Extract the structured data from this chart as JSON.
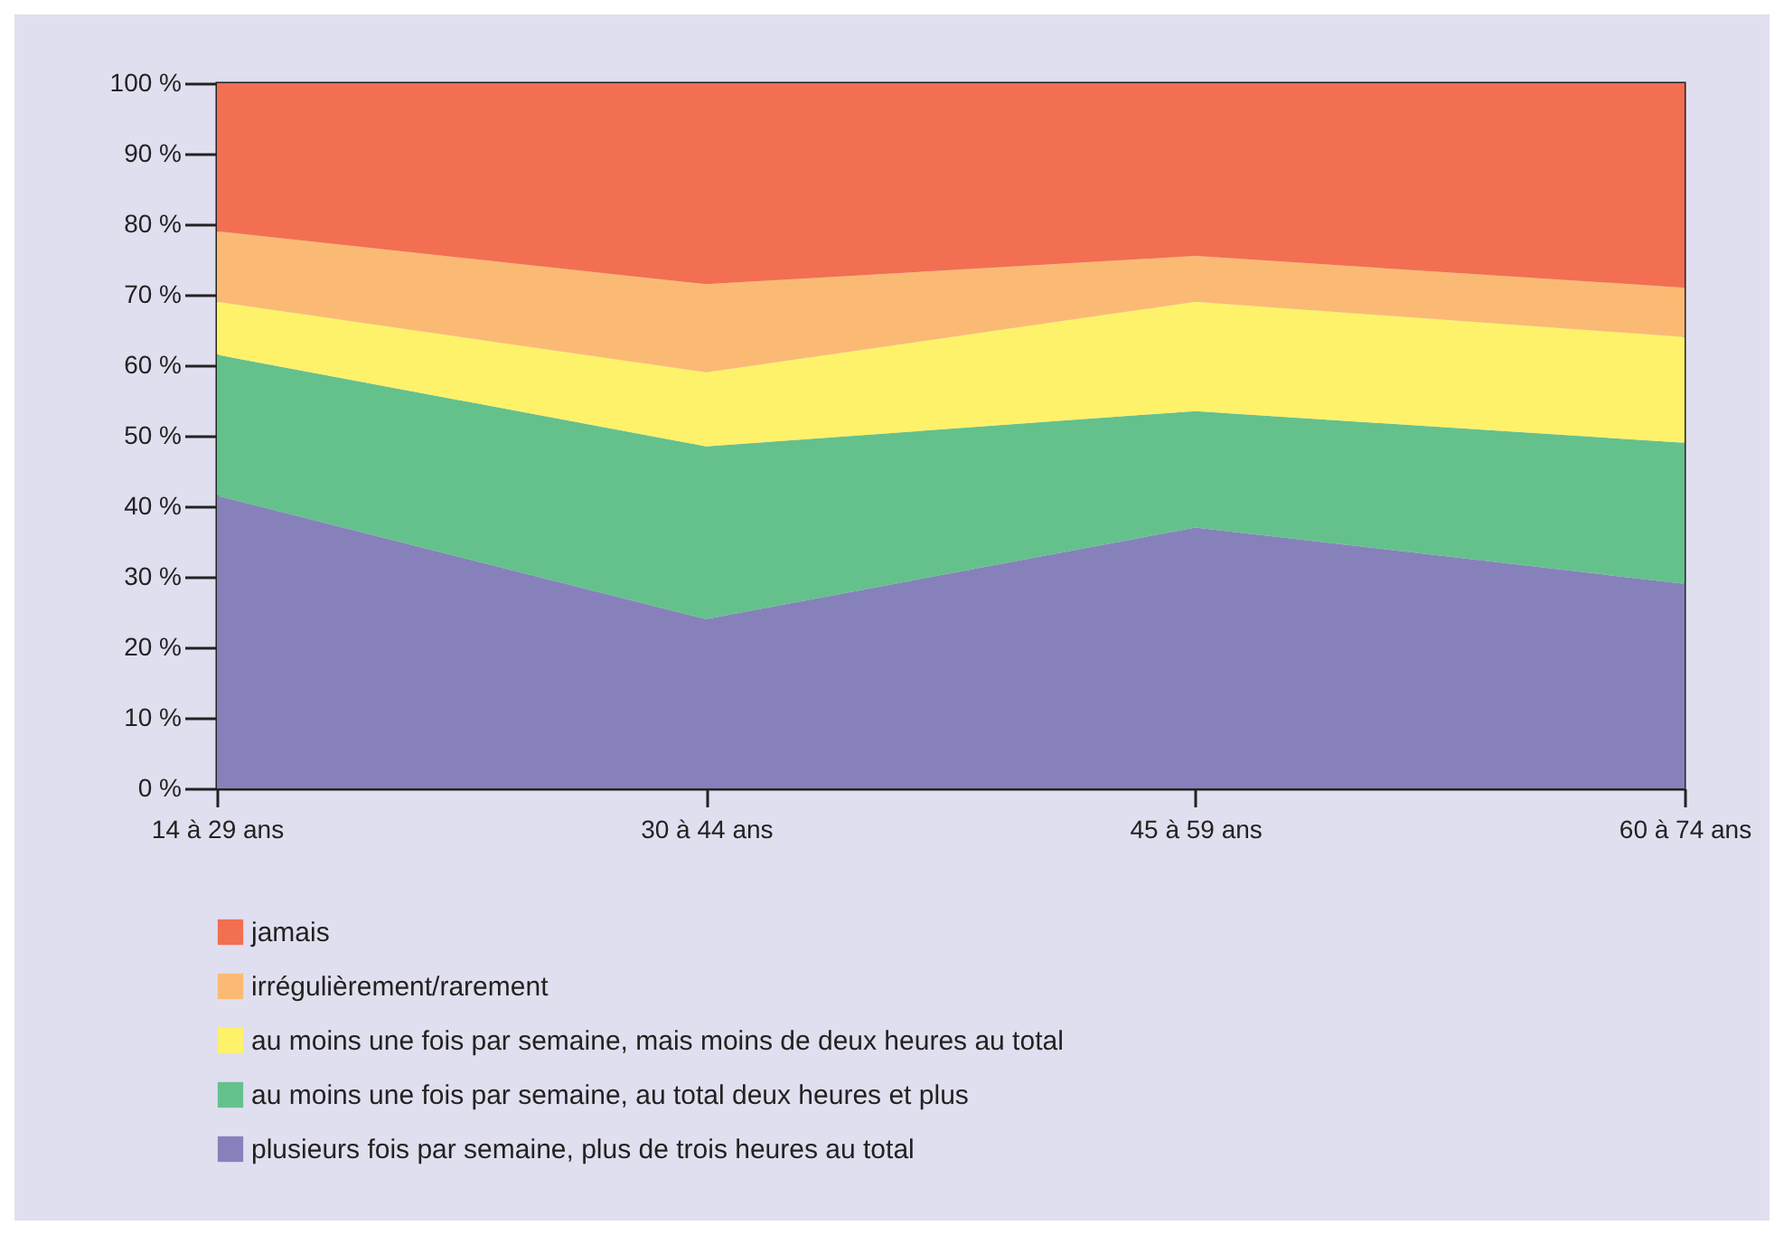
{
  "chart_data": {
    "type": "area",
    "stacked": true,
    "categories": [
      "14 à 29 ans",
      "30 à 44 ans",
      "45 à 59 ans",
      "60 à 74 ans"
    ],
    "series": [
      {
        "name": "plusieurs fois par semaine, plus de trois heures au total",
        "color": "#8781bb",
        "values": [
          41.5,
          24,
          37,
          29
        ]
      },
      {
        "name": "au moins une fois par semaine, au total deux heures et plus",
        "color": "#64c18c",
        "values": [
          20,
          24.5,
          16.5,
          20
        ]
      },
      {
        "name": "au moins une fois par semaine, mais moins de deux heures au total",
        "color": "#fef26b",
        "values": [
          7.5,
          10.5,
          15.5,
          15
        ]
      },
      {
        "name": "irrégulièrement/rarement",
        "color": "#fbba74",
        "values": [
          10,
          12.5,
          6.5,
          7
        ]
      },
      {
        "name": "jamais",
        "color": "#f26f52",
        "values": [
          21,
          28.5,
          24.5,
          29
        ]
      }
    ],
    "ylim": [
      0,
      100
    ],
    "yticks": [
      {
        "value": 0,
        "label": "0 %"
      },
      {
        "value": 10,
        "label": "10 %"
      },
      {
        "value": 20,
        "label": "20 %"
      },
      {
        "value": 30,
        "label": "30 %"
      },
      {
        "value": 40,
        "label": "40 %"
      },
      {
        "value": 50,
        "label": "50 %"
      },
      {
        "value": 60,
        "label": "60 %"
      },
      {
        "value": 70,
        "label": "70 %"
      },
      {
        "value": 80,
        "label": "80 %"
      },
      {
        "value": 90,
        "label": "90 %"
      },
      {
        "value": 100,
        "label": "100 %"
      }
    ],
    "legend": "bottom"
  }
}
